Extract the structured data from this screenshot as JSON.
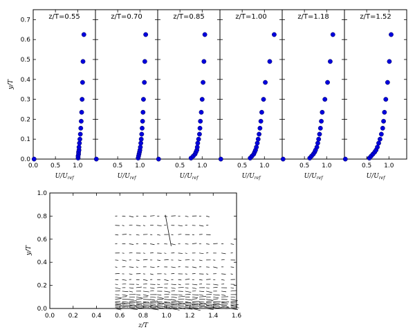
{
  "chart_data": [
    {
      "type": "scatter",
      "panels": [
        {
          "title": "z/T=0.55",
          "x": [
            0.02,
            1.01,
            1.01,
            1.02,
            1.02,
            1.03,
            1.03,
            1.04,
            1.05,
            1.06,
            1.07,
            1.08,
            1.09,
            1.1,
            1.11,
            1.12,
            1.14
          ],
          "y": [
            0.0,
            0.005,
            0.015,
            0.025,
            0.035,
            0.045,
            0.06,
            0.08,
            0.1,
            0.125,
            0.155,
            0.19,
            0.235,
            0.3,
            0.385,
            0.49,
            0.625
          ]
        },
        {
          "title": "z/T=0.70",
          "x": [
            0.02,
            0.96,
            0.97,
            0.98,
            0.99,
            1.0,
            1.01,
            1.02,
            1.03,
            1.04,
            1.05,
            1.06,
            1.07,
            1.08,
            1.1,
            1.11,
            1.13
          ],
          "y": [
            0.0,
            0.005,
            0.015,
            0.025,
            0.035,
            0.045,
            0.06,
            0.08,
            0.1,
            0.125,
            0.155,
            0.19,
            0.235,
            0.3,
            0.385,
            0.49,
            0.625
          ]
        },
        {
          "title": "z/T=0.85",
          "x": [
            0.02,
            0.75,
            0.8,
            0.84,
            0.86,
            0.88,
            0.89,
            0.9,
            0.92,
            0.94,
            0.95,
            0.96,
            0.98,
            1.0,
            1.02,
            1.04,
            1.06
          ],
          "y": [
            0.0,
            0.005,
            0.015,
            0.025,
            0.035,
            0.045,
            0.06,
            0.08,
            0.1,
            0.125,
            0.155,
            0.19,
            0.235,
            0.3,
            0.385,
            0.49,
            0.625
          ]
        },
        {
          "title": "z/T=1.00",
          "x": [
            0.02,
            0.68,
            0.72,
            0.76,
            0.78,
            0.8,
            0.82,
            0.84,
            0.86,
            0.88,
            0.9,
            0.92,
            0.94,
            0.98,
            1.02,
            1.12,
            1.22
          ],
          "y": [
            0.0,
            0.005,
            0.015,
            0.025,
            0.035,
            0.045,
            0.06,
            0.08,
            0.1,
            0.125,
            0.155,
            0.19,
            0.235,
            0.3,
            0.385,
            0.49,
            0.625
          ]
        },
        {
          "title": "z/T=1.18",
          "x": [
            0.02,
            0.62,
            0.66,
            0.7,
            0.73,
            0.75,
            0.78,
            0.8,
            0.82,
            0.84,
            0.86,
            0.88,
            0.9,
            0.96,
            1.02,
            1.08,
            1.14
          ],
          "y": [
            0.0,
            0.005,
            0.015,
            0.025,
            0.035,
            0.045,
            0.06,
            0.08,
            0.1,
            0.125,
            0.155,
            0.19,
            0.235,
            0.3,
            0.385,
            0.49,
            0.625
          ]
        },
        {
          "title": "z/T=1.52",
          "x": [
            0.02,
            0.56,
            0.6,
            0.64,
            0.68,
            0.71,
            0.74,
            0.77,
            0.8,
            0.83,
            0.86,
            0.88,
            0.9,
            0.93,
            0.97,
            1.01,
            1.05
          ],
          "y": [
            0.0,
            0.005,
            0.015,
            0.025,
            0.035,
            0.045,
            0.06,
            0.08,
            0.1,
            0.125,
            0.155,
            0.19,
            0.235,
            0.3,
            0.385,
            0.49,
            0.625
          ]
        }
      ],
      "xlim": [
        0,
        1.4
      ],
      "ylim": [
        0,
        0.75
      ],
      "xticks": [
        "0.0",
        "0.5",
        "1.0"
      ],
      "xticks_last": [
        "0.0",
        "0.5",
        "1.0"
      ],
      "yticks": [
        "0.0",
        "0.1",
        "0.2",
        "0.3",
        "0.4",
        "0.5",
        "0.6",
        "0.7"
      ],
      "xlabel": "U/U_ref",
      "ylabel": "y/T",
      "marker_color": "#0000dd"
    },
    {
      "type": "quiver",
      "xlabel": "z/T",
      "ylabel": "y/T",
      "xlim": [
        0.0,
        1.6
      ],
      "ylim": [
        0.0,
        1.0
      ],
      "xticks": [
        "0.0",
        "0.2",
        "0.4",
        "0.6",
        "0.8",
        "1.0",
        "1.2",
        "1.4",
        "1.6"
      ],
      "yticks": [
        "0.0",
        "0.2",
        "0.4",
        "0.6",
        "0.8",
        "1.0"
      ],
      "columns_z": [
        0.56,
        0.62,
        0.68,
        0.74,
        0.8,
        0.86,
        0.92,
        0.98,
        1.04,
        1.1,
        1.16,
        1.22,
        1.28,
        1.34,
        1.4,
        1.47,
        1.55
      ],
      "rows_y": [
        0.0,
        0.01,
        0.02,
        0.03,
        0.04,
        0.05,
        0.06,
        0.08,
        0.1,
        0.12,
        0.15,
        0.18,
        0.21,
        0.25,
        0.3,
        0.36,
        0.42,
        0.48,
        0.56,
        0.64,
        0.72,
        0.8
      ],
      "outlier": {
        "z": 1.04,
        "y": 0.54,
        "dz": -0.05,
        "dy": 0.27
      },
      "arrow_color": "#000000"
    }
  ]
}
